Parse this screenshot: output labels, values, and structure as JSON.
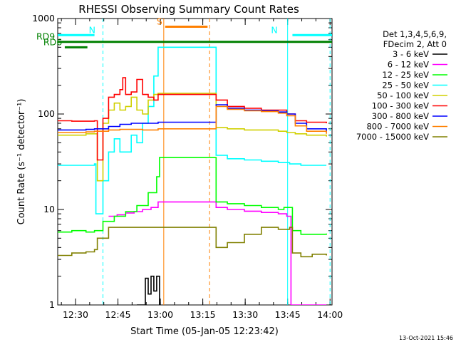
{
  "chart_data": {
    "type": "line",
    "title": "RHESSI Observing Summary Count Rates",
    "xlabel": "Start Time (05-Jan-05 12:23:42)",
    "ylabel": "Count Rate (s⁻¹ detector⁻¹)",
    "yscale": "log",
    "ylim": [
      1,
      1000
    ],
    "xlim_minutes_after_start": [
      0,
      97
    ],
    "x_ticks": [
      "12:30",
      "12:45",
      "13:00",
      "13:15",
      "13:30",
      "13:45",
      "14:00"
    ],
    "x_tick_minutes": [
      6.3,
      21.3,
      36.3,
      51.3,
      66.3,
      81.3,
      96.3
    ],
    "y_ticks": [
      "1",
      "10",
      "100",
      "1000"
    ],
    "y_tick_values": [
      1,
      10,
      100,
      1000
    ],
    "legend_header": [
      "Det 1,3,4,5,6,9,",
      "FDecim 2, Att 0"
    ],
    "legend_position": "right",
    "series": [
      {
        "name": "3 - 6 keV",
        "color": "#000000",
        "x": [
          28,
          31,
          32,
          33,
          34,
          35,
          36
        ],
        "y": [
          1,
          1.9,
          1.3,
          2,
          1.4,
          2,
          1
        ]
      },
      {
        "name": "6 - 12 keV",
        "color": "#ff00ff",
        "x": [
          18,
          21,
          24,
          27,
          30,
          33,
          35.5,
          56,
          60,
          66,
          72,
          78,
          81,
          82,
          82.5,
          84,
          88,
          93,
          95
        ],
        "y": [
          8.5,
          8.8,
          9.2,
          9.5,
          10,
          10.5,
          12,
          10.5,
          10,
          9.6,
          9.3,
          9,
          8.5,
          8.5,
          1,
          1,
          1,
          1,
          1
        ]
      },
      {
        "name": "12 - 25 keV",
        "color": "#00ff00",
        "x": [
          0,
          5,
          10,
          13,
          13.5,
          16,
          20,
          24,
          28,
          32,
          35,
          36,
          56,
          60,
          66,
          72,
          78,
          80,
          83,
          86,
          90,
          95
        ],
        "y": [
          5.8,
          6,
          5.8,
          6,
          6,
          7.5,
          8.5,
          9.5,
          11,
          15,
          22,
          35,
          12,
          11.5,
          11,
          10.5,
          10,
          10.5,
          6,
          5.5,
          5.5,
          5.6
        ]
      },
      {
        "name": "25 - 50 keV",
        "color": "#00ffff",
        "x": [
          0,
          5,
          10,
          13,
          13.5,
          14,
          16,
          18,
          20,
          22,
          24,
          26,
          28,
          30,
          32,
          34,
          35.5,
          56,
          60,
          66,
          72,
          78,
          82,
          86,
          90,
          95
        ],
        "y": [
          29,
          29,
          29,
          30,
          9,
          9,
          20,
          40,
          55,
          40,
          40,
          60,
          50,
          80,
          120,
          250,
          500,
          37,
          34,
          33,
          32,
          31,
          30,
          29,
          29,
          29
        ]
      },
      {
        "name": "50 - 100 keV",
        "color": "#d0d000",
        "x": [
          0,
          5,
          10,
          13,
          14,
          16,
          18,
          20,
          22,
          24,
          26,
          28,
          30,
          32,
          34,
          35.5,
          56,
          60,
          66,
          72,
          78,
          81,
          84,
          88,
          95
        ],
        "y": [
          60,
          60,
          62,
          62,
          20,
          80,
          110,
          130,
          110,
          120,
          150,
          110,
          100,
          140,
          160,
          165,
          72,
          70,
          68,
          68,
          66,
          64,
          62,
          60,
          58
        ]
      },
      {
        "name": "100 - 300 keV",
        "color": "#ff0000",
        "x": [
          0,
          5,
          10,
          13,
          14,
          16,
          18,
          20,
          22,
          23,
          24,
          26,
          28,
          30,
          32,
          34,
          35.5,
          56,
          60,
          66,
          72,
          78,
          81,
          84,
          88,
          95
        ],
        "y": [
          85,
          84,
          84,
          85,
          33,
          90,
          150,
          160,
          180,
          240,
          160,
          170,
          230,
          160,
          150,
          140,
          160,
          140,
          120,
          115,
          110,
          110,
          100,
          85,
          82,
          80
        ]
      },
      {
        "name": "300 - 800 keV",
        "color": "#0000ff",
        "x": [
          0,
          5,
          10,
          13,
          14,
          18,
          22,
          26,
          30,
          35.5,
          56,
          60,
          66,
          72,
          78,
          81,
          84,
          88,
          95
        ],
        "y": [
          68,
          68,
          69,
          70,
          70,
          74,
          78,
          80,
          80,
          82,
          125,
          115,
          110,
          108,
          105,
          100,
          80,
          70,
          65
        ]
      },
      {
        "name": "800 - 7000 keV",
        "color": "#ff8000",
        "x": [
          0,
          5,
          10,
          13,
          14,
          18,
          22,
          26,
          30,
          35.5,
          56,
          60,
          66,
          72,
          78,
          81,
          84,
          88,
          95
        ],
        "y": [
          64,
          64,
          65,
          66,
          66,
          68,
          69,
          69,
          68,
          70,
          120,
          112,
          108,
          106,
          102,
          96,
          75,
          66,
          62
        ]
      },
      {
        "name": "7000 - 15000 keV",
        "color": "#808000",
        "x": [
          0,
          5,
          10,
          13,
          14,
          18,
          22,
          26,
          30,
          35.5,
          56,
          60,
          66,
          72,
          78,
          82,
          83,
          86,
          90,
          95
        ],
        "y": [
          3.3,
          3.5,
          3.6,
          3.8,
          5,
          6.5,
          6.5,
          6.5,
          6.5,
          6.5,
          4,
          4.5,
          5.5,
          6.5,
          6.2,
          6.5,
          3.5,
          3.2,
          3.4,
          3.3
        ]
      }
    ],
    "annotations": {
      "bars": [
        {
          "label": "N",
          "color": "#00ffff",
          "x": [
            0,
            13
          ],
          "y": 670
        },
        {
          "label": "N",
          "color": "#00ffff",
          "x": [
            83,
            97
          ],
          "y": 670
        },
        {
          "label": "RD9",
          "color": "#008000",
          "x": [
            0,
            97
          ],
          "y": 570
        },
        {
          "label": "RD6",
          "color": "#008000",
          "x": [
            2.5,
            10.5
          ],
          "y": 500
        },
        {
          "label": "S",
          "color": "#ff8000",
          "x": [
            38,
            53
          ],
          "y": 820
        }
      ],
      "vlines_cyan": [
        16,
        81.3,
        96.3
      ],
      "vlines_orange": [
        37.5,
        53.7
      ]
    }
  },
  "footer_stamp": "13-Oct-2021 15:46"
}
